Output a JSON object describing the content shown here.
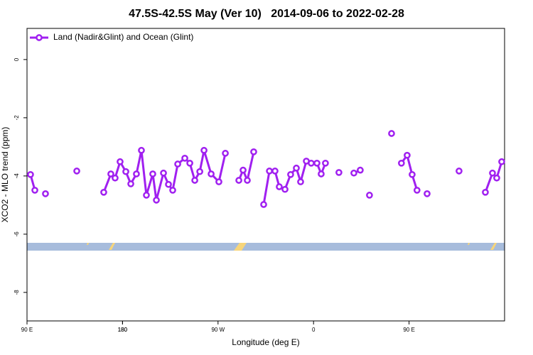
{
  "chart_data": {
    "type": "line",
    "title": "47.5S-42.5S May (Ver 10)   2014-09-06 to 2022-02-28",
    "xlabel": "Longitude (deg E)",
    "ylabel": "XCO2 - MLO trend (ppm)",
    "x": [
      93.3,
      97.4,
      null,
      107.4,
      null,
      136.9,
      null,
      162.3,
      169.0,
      173.0,
      177.7,
      183.1,
      187.8,
      193.1,
      197.8,
      202.5,
      208.5,
      211.9,
      218.6,
      223.3,
      227.3,
      232.0,
      238.7,
      243.4,
      248.1,
      252.8,
      256.8,
      263.5,
      270.8,
      276.9,
      null,
      289.6,
      293.6,
      297.6,
      303.6,
      null,
      313.0,
      318.4,
      323.7,
      327.7,
      333.1,
      338.4,
      343.8,
      347.8,
      353.2,
      357.8,
      363.2,
      367.2,
      371.2,
      null,
      383.9,
      null,
      398.0,
      404.0,
      null,
      412.7,
      null,
      433.5,
      null,
      442.8,
      448.2,
      452.9,
      457.5,
      null,
      467.0,
      null,
      497.1,
      null,
      521.9,
      528.6,
      532.6,
      537.3
    ],
    "series": [
      {
        "name": "Land (Nadir&Glint) and Ocean (Glint)",
        "color": "#a020f0",
        "values": [
          -3.95,
          -4.49,
          null,
          -4.61,
          null,
          -3.83,
          null,
          -4.56,
          -3.93,
          -4.07,
          -3.51,
          -3.85,
          -4.27,
          -3.93,
          -3.12,
          -4.66,
          -3.93,
          -4.83,
          -3.9,
          -4.29,
          -4.49,
          -3.59,
          -3.39,
          -3.56,
          -4.15,
          -3.85,
          -3.12,
          -3.93,
          -4.2,
          -3.22,
          null,
          -4.15,
          -3.8,
          -4.15,
          -3.17,
          null,
          -4.98,
          -3.83,
          -3.83,
          -4.37,
          -4.46,
          -3.95,
          -3.73,
          -4.2,
          -3.49,
          -3.56,
          -3.56,
          -3.93,
          -3.56,
          null,
          -3.88,
          null,
          -3.9,
          -3.8,
          null,
          -4.66,
          null,
          -2.54,
          null,
          -3.56,
          -3.29,
          -3.95,
          -4.49,
          null,
          -4.61,
          null,
          -3.83,
          null,
          -4.56,
          -3.9,
          -4.07,
          -3.51
        ]
      }
    ],
    "xlim": [
      90,
      540
    ],
    "xticks": [
      {
        "value": 90,
        "label": "90 E"
      },
      180,
      {
        "value": 270,
        "label": "90 W"
      },
      {
        "value": 360,
        "label": "0"
      },
      {
        "value": 450,
        "label": "90 E"
      },
      180.0001
    ],
    "ylim": [
      -8.98,
      1.07
    ],
    "yticks": [
      0,
      -2,
      -4,
      -6,
      -8
    ],
    "legend": "top-left"
  }
}
